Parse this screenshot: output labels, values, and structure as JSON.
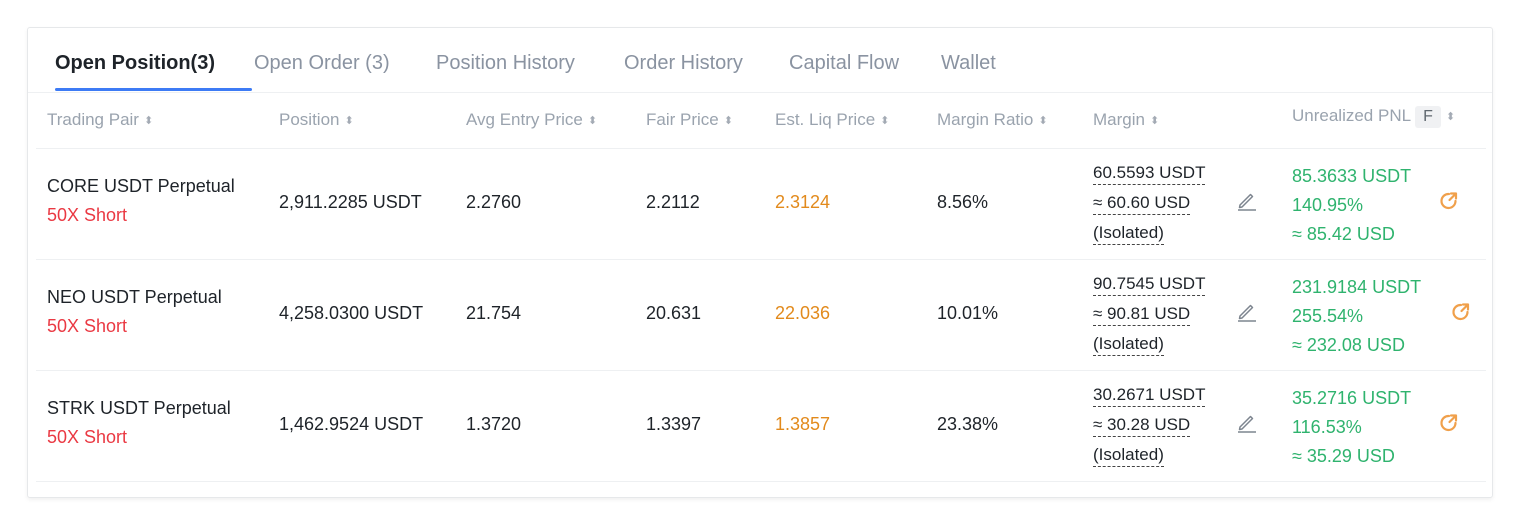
{
  "tabs": [
    {
      "label": "Open Position(3)"
    },
    {
      "label": "Open Order (3)"
    },
    {
      "label": "Position History"
    },
    {
      "label": "Order History"
    },
    {
      "label": "Capital Flow"
    },
    {
      "label": "Wallet"
    }
  ],
  "columns": {
    "pair": "Trading Pair",
    "position": "Position",
    "avg_entry": "Avg Entry Price",
    "fair": "Fair Price",
    "liq": "Est. Liq Price",
    "ratio": "Margin Ratio",
    "margin": "Margin",
    "pnl": "Unrealized PNL",
    "pnl_toggle": "F"
  },
  "sort_glyph": "⬍",
  "rows": [
    {
      "pair": "CORE USDT Perpetual",
      "side": "50X Short",
      "position": "2,911.2285 USDT",
      "avg_entry": "2.2760",
      "fair": "2.2112",
      "liq": "2.3124",
      "ratio": "8.56%",
      "margin_usdt": "60.5593 USDT",
      "margin_usd": "≈ 60.60 USD",
      "margin_mode": "(Isolated)",
      "pnl_usdt": "85.3633 USDT",
      "pnl_pct": "140.95%",
      "pnl_usd": "≈ 85.42 USD"
    },
    {
      "pair": "NEO USDT Perpetual",
      "side": "50X Short",
      "position": "4,258.0300 USDT",
      "avg_entry": "21.754",
      "fair": "20.631",
      "liq": "22.036",
      "ratio": "10.01%",
      "margin_usdt": "90.7545 USDT",
      "margin_usd": "≈ 90.81 USD",
      "margin_mode": "(Isolated)",
      "pnl_usdt": "231.9184 USDT",
      "pnl_pct": "255.54%",
      "pnl_usd": "≈ 232.08 USD"
    },
    {
      "pair": "STRK USDT Perpetual",
      "side": "50X Short",
      "position": "1,462.9524 USDT",
      "avg_entry": "1.3720",
      "fair": "1.3397",
      "liq": "1.3857",
      "ratio": "23.38%",
      "margin_usdt": "30.2671 USDT",
      "margin_usd": "≈ 30.28 USD",
      "margin_mode": "(Isolated)",
      "pnl_usdt": "35.2716 USDT",
      "pnl_pct": "116.53%",
      "pnl_usd": "≈ 35.29 USD"
    }
  ],
  "icons": {
    "edit": "pencil-icon",
    "share": "share-icon",
    "sort": "sort-icon"
  },
  "colors": {
    "accent": "#3d7bf5",
    "short": "#ea3943",
    "liq": "#e28a1c",
    "profit": "#2fb36e"
  }
}
